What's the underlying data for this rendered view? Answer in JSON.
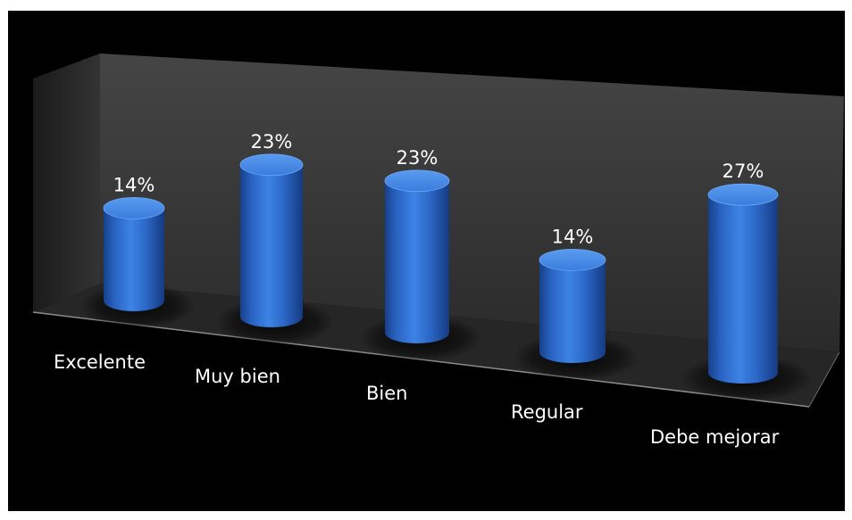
{
  "chart_data": {
    "type": "bar",
    "style": "3d-cylinder",
    "categories": [
      "Excelente",
      "Muy bien",
      "Bien",
      "Regular",
      "Debe mejorar"
    ],
    "values": [
      14,
      23,
      23,
      14,
      27
    ],
    "data_labels": [
      "14%",
      "23%",
      "23%",
      "14%",
      "27%"
    ],
    "ylim": [
      0,
      30
    ],
    "grid": false,
    "legend": "none",
    "colors": {
      "background": "#000000",
      "frame": "#ffffff",
      "bar": "#2f72d6",
      "bar_top": "#3f86e8",
      "back_wall": "#3a3a3a",
      "floor": "#262626",
      "text": "#ffffff"
    }
  }
}
